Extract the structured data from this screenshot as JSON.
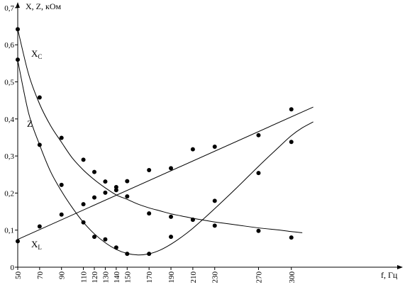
{
  "chart_data": {
    "type": "scatter",
    "title": "",
    "ylabel": "X, Z, кОм",
    "xlabel": "f, Гц",
    "xlim": [
      50,
      320
    ],
    "ylim": [
      0,
      0.7
    ],
    "x_ticks": [
      50,
      70,
      90,
      110,
      120,
      130,
      140,
      150,
      170,
      190,
      210,
      230,
      270,
      300
    ],
    "y_ticks": [
      "0",
      "0,1",
      "0,2",
      "0,3",
      "0,4",
      "0,5",
      "0,6",
      "0,7"
    ],
    "y_tick_values": [
      0,
      0.1,
      0.2,
      0.3,
      0.4,
      0.5,
      0.6,
      0.7
    ],
    "grid": false,
    "series": [
      {
        "name": "Xc",
        "label_main": "X",
        "label_sub": "C",
        "points": [
          [
            50,
            0.642
          ],
          [
            70,
            0.458
          ],
          [
            90,
            0.349
          ],
          [
            110,
            0.29
          ],
          [
            120,
            0.257
          ],
          [
            130,
            0.231
          ],
          [
            140,
            0.216
          ],
          [
            150,
            0.232
          ],
          [
            170,
            0.262
          ],
          [
            190,
            0.267
          ],
          [
            210,
            0.318
          ],
          [
            230,
            0.325
          ],
          [
            270,
            0.356
          ],
          [
            300,
            0.338
          ]
        ],
        "fit_x": [
          50,
          60,
          70,
          80,
          90,
          100,
          110,
          120,
          130,
          140,
          150,
          160,
          170,
          180,
          190,
          200,
          210,
          220,
          230,
          250,
          270,
          290,
          300,
          310
        ],
        "fit_y": [
          0.642,
          0.52,
          0.44,
          0.382,
          0.337,
          0.294,
          0.262,
          0.236,
          0.214,
          0.195,
          0.183,
          0.17,
          0.16,
          0.152,
          0.144,
          0.138,
          0.132,
          0.127,
          0.122,
          0.114,
          0.106,
          0.1,
          0.096,
          0.093
        ]
      },
      {
        "name": "XL",
        "label_main": "X",
        "label_sub": "L",
        "points": [
          [
            50,
            0.07
          ],
          [
            70,
            0.11
          ],
          [
            90,
            0.142
          ],
          [
            110,
            0.17
          ],
          [
            120,
            0.188
          ],
          [
            130,
            0.201
          ],
          [
            140,
            0.208
          ],
          [
            150,
            0.191
          ],
          [
            170,
            0.145
          ],
          [
            190,
            0.136
          ],
          [
            210,
            0.128
          ],
          [
            230,
            0.112
          ],
          [
            270,
            0.098
          ],
          [
            300,
            0.426
          ]
        ],
        "fit_x": [
          50,
          320
        ],
        "fit_y": [
          0.075,
          0.432
        ]
      },
      {
        "name": "Z",
        "label_main": "Z",
        "label_sub": "",
        "points": [
          [
            50,
            0.56
          ],
          [
            70,
            0.33
          ],
          [
            90,
            0.222
          ],
          [
            110,
            0.121
          ],
          [
            120,
            0.082
          ],
          [
            130,
            0.075
          ],
          [
            140,
            0.053
          ],
          [
            150,
            0.036
          ],
          [
            170,
            0.036
          ],
          [
            190,
            0.082
          ],
          [
            210,
            0.128
          ],
          [
            230,
            0.179
          ],
          [
            270,
            0.254
          ],
          [
            300,
            0.08
          ]
        ],
        "fit_x": [
          50,
          60,
          70,
          80,
          90,
          100,
          110,
          120,
          130,
          140,
          150,
          160,
          170,
          180,
          190,
          200,
          210,
          220,
          230,
          250,
          270,
          290,
          300,
          310,
          320
        ],
        "fit_y": [
          0.558,
          0.415,
          0.33,
          0.258,
          0.205,
          0.16,
          0.121,
          0.09,
          0.066,
          0.048,
          0.037,
          0.033,
          0.036,
          0.046,
          0.062,
          0.082,
          0.105,
          0.131,
          0.158,
          0.214,
          0.272,
          0.328,
          0.355,
          0.376,
          0.392
        ]
      }
    ]
  }
}
